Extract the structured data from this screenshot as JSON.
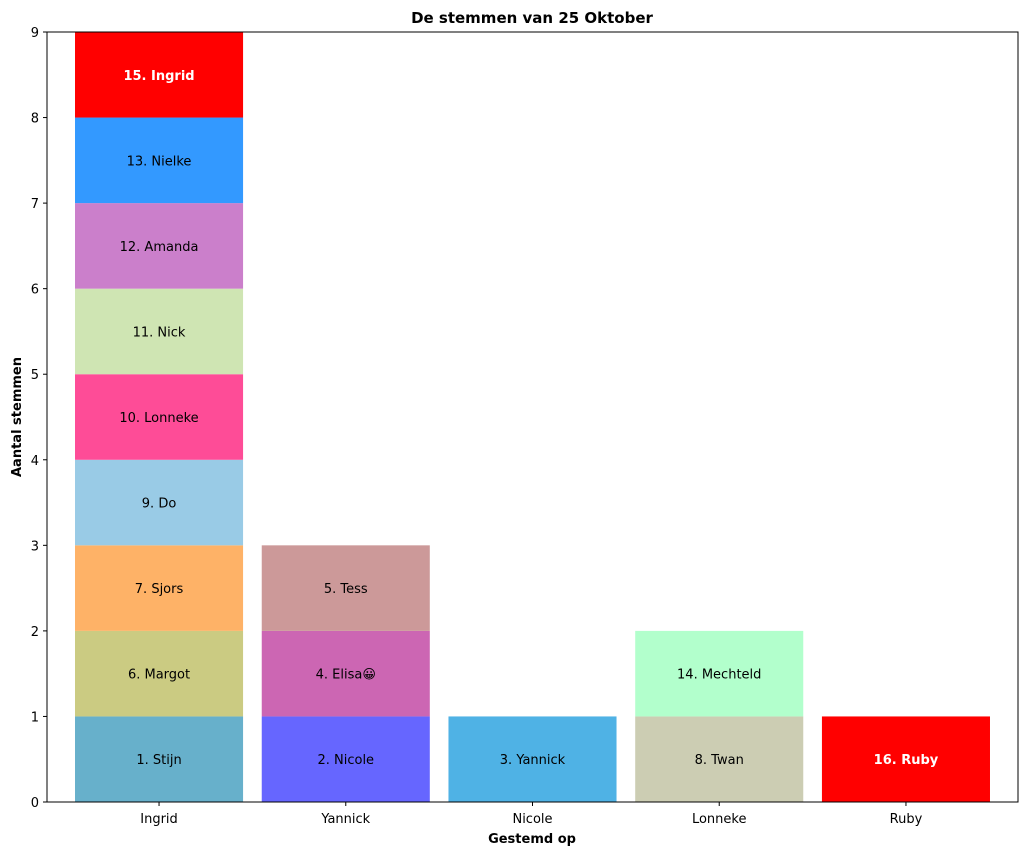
{
  "chart_data": {
    "type": "bar",
    "stacked": true,
    "title": "De stemmen van 25 Oktober",
    "xlabel": "Gestemd op",
    "ylabel": "Aantal stemmen",
    "categories": [
      "Ingrid",
      "Yannick",
      "Nicole",
      "Lonneke",
      "Ruby"
    ],
    "ylim": [
      0,
      9
    ],
    "yticks": [
      "0",
      "1",
      "2",
      "3",
      "4",
      "5",
      "6",
      "7",
      "8",
      "9"
    ],
    "grid": false,
    "segments": [
      {
        "category": "Ingrid",
        "label": "1. Stijn",
        "value": 1,
        "color": "#67b0cb",
        "highlight": false
      },
      {
        "category": "Ingrid",
        "label": "6. Margot",
        "value": 1,
        "color": "#cbcb82",
        "highlight": false
      },
      {
        "category": "Ingrid",
        "label": "7. Sjors",
        "value": 1,
        "color": "#feb267",
        "highlight": false
      },
      {
        "category": "Ingrid",
        "label": "9. Do",
        "value": 1,
        "color": "#99cbe6",
        "highlight": false
      },
      {
        "category": "Ingrid",
        "label": "10. Lonneke",
        "value": 1,
        "color": "#fe4c97",
        "highlight": false
      },
      {
        "category": "Ingrid",
        "label": "11. Nick",
        "value": 1,
        "color": "#cfe5b3",
        "highlight": false
      },
      {
        "category": "Ingrid",
        "label": "12. Amanda",
        "value": 1,
        "color": "#cb7fcb",
        "highlight": false
      },
      {
        "category": "Ingrid",
        "label": "13. Nielke",
        "value": 1,
        "color": "#3399ff",
        "highlight": false
      },
      {
        "category": "Ingrid",
        "label": "15. Ingrid",
        "value": 1,
        "color": "#ff0000",
        "highlight": true
      },
      {
        "category": "Yannick",
        "label": "2. Nicole",
        "value": 1,
        "color": "#6666ff",
        "highlight": false
      },
      {
        "category": "Yannick",
        "label": "4. Elisa😀",
        "value": 1,
        "color": "#cc66b3",
        "highlight": false
      },
      {
        "category": "Yannick",
        "label": "5. Tess",
        "value": 1,
        "color": "#cc9999",
        "highlight": false
      },
      {
        "category": "Nicole",
        "label": "3. Yannick",
        "value": 1,
        "color": "#4fb2e5",
        "highlight": false
      },
      {
        "category": "Lonneke",
        "label": "8. Twan",
        "value": 1,
        "color": "#cccdb3",
        "highlight": false
      },
      {
        "category": "Lonneke",
        "label": "14. Mechteld",
        "value": 1,
        "color": "#b2ffcc",
        "highlight": false
      },
      {
        "category": "Ruby",
        "label": "16. Ruby",
        "value": 1,
        "color": "#ff0000",
        "highlight": true
      }
    ]
  }
}
